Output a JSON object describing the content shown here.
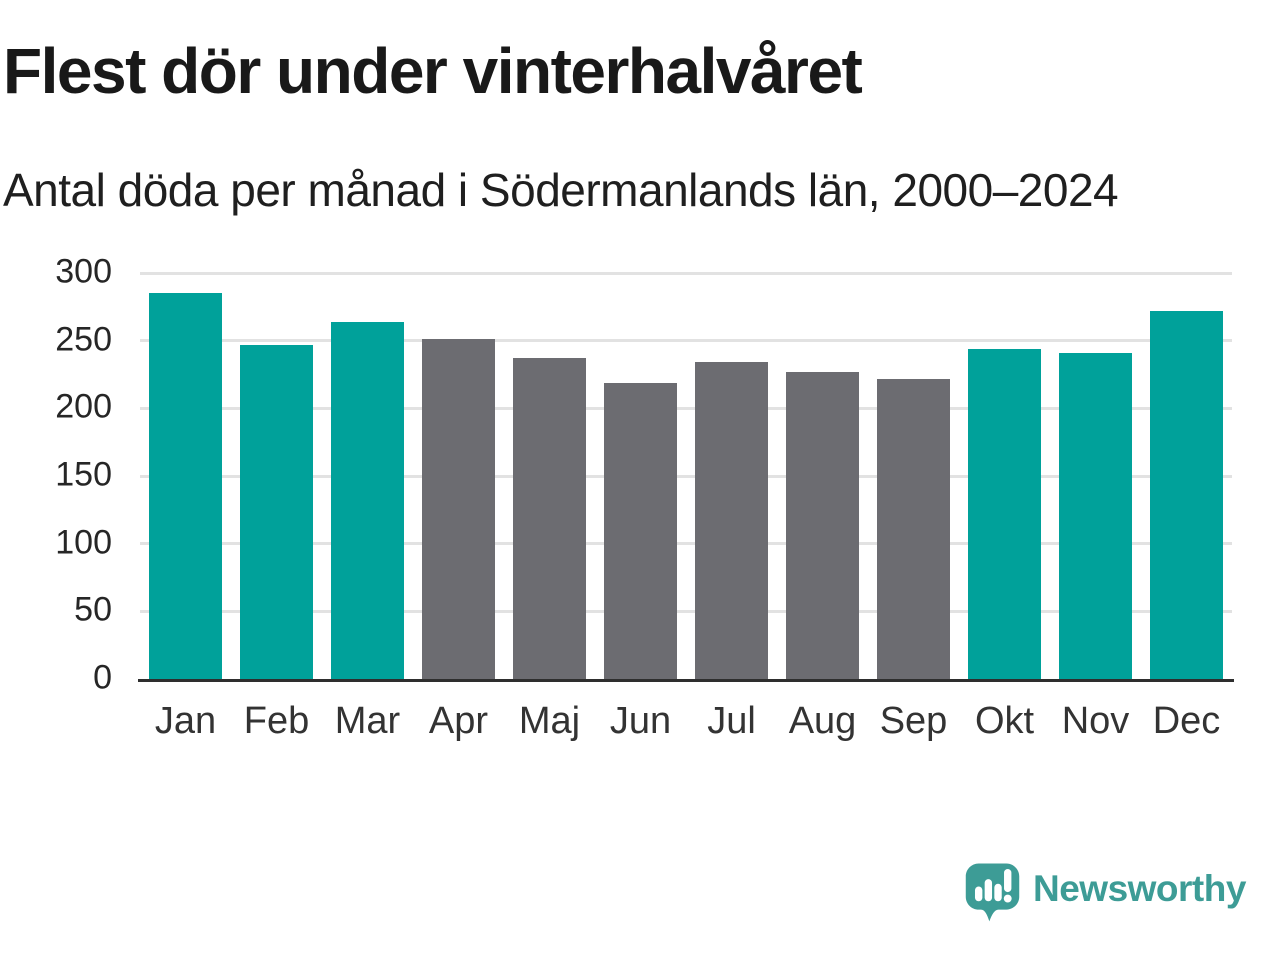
{
  "header": {
    "title": "Flest dör under vinterhalvåret",
    "subtitle": "Antal döda per månad i Södermanlands län, 2000–2024"
  },
  "chart_data": {
    "type": "bar",
    "title": "Flest dör under vinterhalvåret",
    "subtitle": "Antal döda per månad i Södermanlands län, 2000–2024",
    "categories": [
      "Jan",
      "Feb",
      "Mar",
      "Apr",
      "Maj",
      "Jun",
      "Jul",
      "Aug",
      "Sep",
      "Okt",
      "Nov",
      "Dec"
    ],
    "values": [
      285,
      247,
      264,
      251,
      237,
      219,
      234,
      227,
      222,
      244,
      241,
      272
    ],
    "bar_color_keys": [
      "teal",
      "teal",
      "teal",
      "gray",
      "gray",
      "gray",
      "gray",
      "gray",
      "gray",
      "teal",
      "teal",
      "teal"
    ],
    "colors": {
      "teal": "#00a19a",
      "gray": "#6c6c71"
    },
    "highlight_note": "winter months Jan–Mar and Okt–Dec are teal, Apr–Sep gray",
    "xlabel": "",
    "ylabel": "",
    "ylim": [
      0,
      300
    ],
    "yticks": [
      0,
      50,
      100,
      150,
      200,
      250,
      300
    ],
    "grid": true,
    "legend": false
  },
  "footer": {
    "brand": "Newsworthy",
    "brand_color": "#3d9c96",
    "logo_icon": "newsworthy-speech-bubble-bar-chart-icon"
  }
}
